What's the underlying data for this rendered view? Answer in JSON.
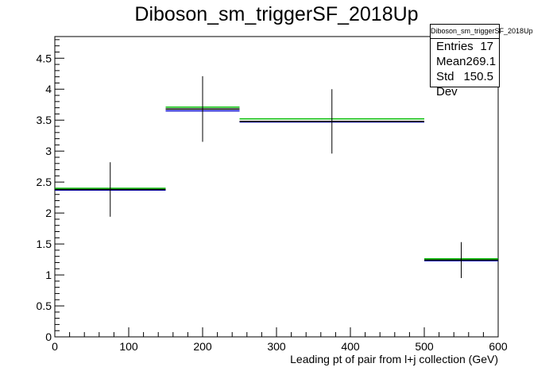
{
  "chart_data": {
    "type": "histogram",
    "title": "Diboson_sm_triggerSF_2018Up",
    "xlabel": "Leading pt of pair from l+j collection (GeV)",
    "ylabel": "",
    "xlim": [
      0,
      600
    ],
    "ylim": [
      0,
      4.85
    ],
    "x_ticks": [
      0,
      100,
      200,
      300,
      400,
      500,
      600
    ],
    "y_ticks": [
      0,
      0.5,
      1,
      1.5,
      2,
      2.5,
      3,
      3.5,
      4,
      4.5
    ],
    "bins": [
      {
        "x_low": 0,
        "x_high": 150,
        "x_center": 75,
        "nominal": 2.38,
        "green": 2.4,
        "blue": 2.37,
        "error": 0.44
      },
      {
        "x_low": 150,
        "x_high": 250,
        "x_center": 200,
        "nominal": 3.68,
        "green": 3.71,
        "blue": 3.65,
        "error": 0.53
      },
      {
        "x_low": 250,
        "x_high": 500,
        "x_center": 375,
        "nominal": 3.48,
        "green": 3.52,
        "blue": 3.47,
        "error": 0.52
      },
      {
        "x_low": 500,
        "x_high": 600,
        "x_center": 550,
        "nominal": 1.24,
        "green": 1.26,
        "blue": 1.23,
        "error": 0.29
      }
    ],
    "colors": {
      "nominal": "#000000",
      "green": "#00bb00",
      "blue": "#0000cc"
    },
    "grid": false
  },
  "stats": {
    "name": "Diboson_sm_triggerSF_2018Up",
    "entries_label": "Entries",
    "entries_value": "17",
    "mean_label": "Mean",
    "mean_value": "269.1",
    "stddev_label": "Std Dev",
    "stddev_value": "150.5"
  }
}
